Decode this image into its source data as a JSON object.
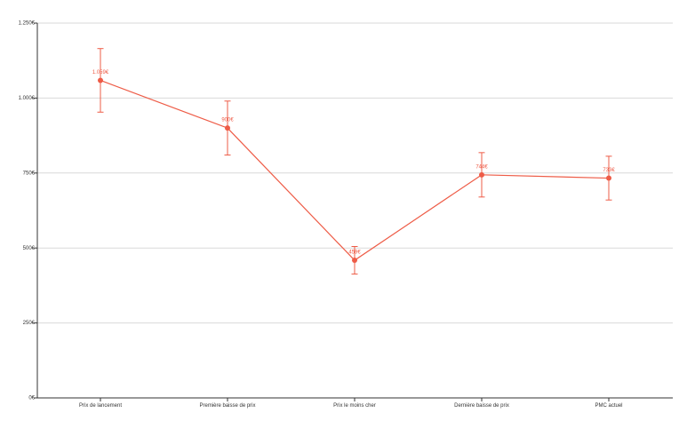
{
  "chart_data": {
    "type": "line",
    "categories": [
      "Prix de lancement",
      "Première baisse de prix",
      "Prix le moins cher",
      "Dernière baisse de prix",
      "PMC actuel"
    ],
    "series": [
      {
        "values": [
          1059,
          900,
          459,
          744,
          733
        ],
        "error_low": [
          953,
          810,
          413,
          670,
          660
        ],
        "error_high": [
          1165,
          990,
          505,
          818,
          806
        ],
        "data_labels": [
          "1.059€",
          "900€",
          "459€",
          "744€",
          "733€"
        ],
        "color": "#ee5c47"
      }
    ],
    "y_ticks": [
      0,
      250,
      500,
      750,
      1000,
      1250
    ],
    "y_tick_labels": [
      "0€",
      "250€",
      "500€",
      "750€",
      "1.000€",
      "1.250€"
    ],
    "ylim": [
      0,
      1250
    ],
    "title": "",
    "xlabel": "",
    "ylabel": "",
    "grid": true,
    "legend": "none"
  }
}
